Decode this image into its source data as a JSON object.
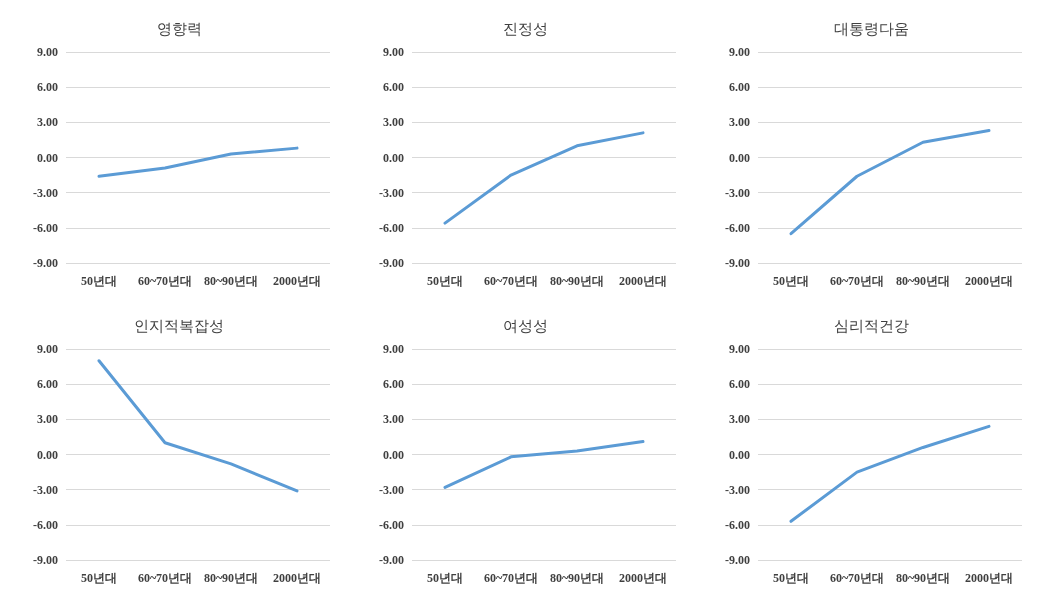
{
  "chart_data": [
    {
      "type": "line",
      "title": "영향력",
      "categories": [
        "50년대",
        "60~70년대",
        "80~90년대",
        "2000년대"
      ],
      "series": [
        {
          "color": "#5b9bd5",
          "values": [
            -1.6,
            -0.9,
            0.3,
            0.8
          ]
        }
      ],
      "ylim": [
        -9,
        9
      ],
      "yticks": [
        {
          "value": -9,
          "label": "-9.00"
        },
        {
          "value": -6,
          "label": "-6.00"
        },
        {
          "value": -3,
          "label": "-3.00"
        },
        {
          "value": 0,
          "label": "0.00"
        },
        {
          "value": 3,
          "label": "3.00"
        },
        {
          "value": 6,
          "label": "6.00"
        },
        {
          "value": 9,
          "label": "9.00"
        }
      ],
      "grid": "y",
      "marker": "none",
      "line_style": "solid"
    },
    {
      "type": "line",
      "title": "진정성",
      "categories": [
        "50년대",
        "60~70년대",
        "80~90년대",
        "2000년대"
      ],
      "series": [
        {
          "color": "#5b9bd5",
          "values": [
            -5.6,
            -1.5,
            1.0,
            2.1
          ]
        }
      ],
      "ylim": [
        -9,
        9
      ],
      "yticks": [
        {
          "value": -9,
          "label": "-9.00"
        },
        {
          "value": -6,
          "label": "-6.00"
        },
        {
          "value": -3,
          "label": "-3.00"
        },
        {
          "value": 0,
          "label": "0.00"
        },
        {
          "value": 3,
          "label": "3.00"
        },
        {
          "value": 6,
          "label": "6.00"
        },
        {
          "value": 9,
          "label": "9.00"
        }
      ],
      "grid": "y",
      "marker": "none",
      "line_style": "solid"
    },
    {
      "type": "line",
      "title": "대통령다움",
      "categories": [
        "50년대",
        "60~70년대",
        "80~90년대",
        "2000년대"
      ],
      "series": [
        {
          "color": "#5b9bd5",
          "values": [
            -6.5,
            -1.6,
            1.3,
            2.3
          ]
        }
      ],
      "ylim": [
        -9,
        9
      ],
      "yticks": [
        {
          "value": -9,
          "label": "-9.00"
        },
        {
          "value": -6,
          "label": "-6.00"
        },
        {
          "value": -3,
          "label": "-3.00"
        },
        {
          "value": 0,
          "label": "0.00"
        },
        {
          "value": 3,
          "label": "3.00"
        },
        {
          "value": 6,
          "label": "6.00"
        },
        {
          "value": 9,
          "label": "9.00"
        }
      ],
      "grid": "y",
      "marker": "none",
      "line_style": "solid"
    },
    {
      "type": "line",
      "title": "인지적복잡성",
      "categories": [
        "50년대",
        "60~70년대",
        "80~90년대",
        "2000년대"
      ],
      "series": [
        {
          "color": "#5b9bd5",
          "values": [
            8.0,
            1.0,
            -0.8,
            -3.1
          ]
        }
      ],
      "ylim": [
        -9,
        9
      ],
      "yticks": [
        {
          "value": -9,
          "label": "-9.00"
        },
        {
          "value": -6,
          "label": "-6.00"
        },
        {
          "value": -3,
          "label": "-3.00"
        },
        {
          "value": 0,
          "label": "0.00"
        },
        {
          "value": 3,
          "label": "3.00"
        },
        {
          "value": 6,
          "label": "6.00"
        },
        {
          "value": 9,
          "label": "9.00"
        }
      ],
      "grid": "y",
      "marker": "none",
      "line_style": "solid"
    },
    {
      "type": "line",
      "title": "여성성",
      "categories": [
        "50년대",
        "60~70년대",
        "80~90년대",
        "2000년대"
      ],
      "series": [
        {
          "color": "#5b9bd5",
          "values": [
            -2.8,
            -0.2,
            0.3,
            1.1
          ]
        }
      ],
      "ylim": [
        -9,
        9
      ],
      "yticks": [
        {
          "value": -9,
          "label": "-9.00"
        },
        {
          "value": -6,
          "label": "-6.00"
        },
        {
          "value": -3,
          "label": "-3.00"
        },
        {
          "value": 0,
          "label": "0.00"
        },
        {
          "value": 3,
          "label": "3.00"
        },
        {
          "value": 6,
          "label": "6.00"
        },
        {
          "value": 9,
          "label": "9.00"
        }
      ],
      "grid": "y",
      "marker": "none",
      "line_style": "solid"
    },
    {
      "type": "line",
      "title": "심리적건강",
      "categories": [
        "50년대",
        "60~70년대",
        "80~90년대",
        "2000년대"
      ],
      "series": [
        {
          "color": "#5b9bd5",
          "values": [
            -5.7,
            -1.5,
            0.6,
            2.4
          ]
        }
      ],
      "ylim": [
        -9,
        9
      ],
      "yticks": [
        {
          "value": -9,
          "label": "-9.00"
        },
        {
          "value": -6,
          "label": "-6.00"
        },
        {
          "value": -3,
          "label": "-3.00"
        },
        {
          "value": 0,
          "label": "0.00"
        },
        {
          "value": 3,
          "label": "3.00"
        },
        {
          "value": 6,
          "label": "6.00"
        },
        {
          "value": 9,
          "label": "9.00"
        }
      ],
      "grid": "y",
      "marker": "none",
      "line_style": "solid"
    }
  ]
}
